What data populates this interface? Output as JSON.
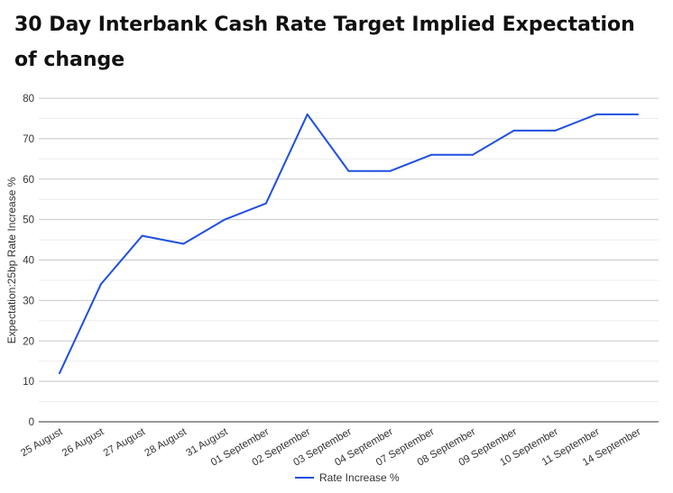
{
  "chart_data": {
    "type": "line",
    "title": "30 Day Interbank Cash Rate Target Implied Expectation of change",
    "xlabel": "",
    "ylabel": "Expectation:25bp Rate Increase %",
    "ylim": [
      0,
      80
    ],
    "yticks": [
      0,
      10,
      20,
      30,
      40,
      50,
      60,
      70,
      80
    ],
    "grid": true,
    "legend_position": "bottom",
    "categories": [
      "25 August",
      "26 August",
      "27 August",
      "28 August",
      "31 August",
      "01 September",
      "02 September",
      "03 September",
      "04 September",
      "07 September",
      "08 September",
      "09 September",
      "10 September",
      "11 September",
      "14 September"
    ],
    "series": [
      {
        "name": "Rate Increase %",
        "color": "#1f4fe0",
        "values": [
          12,
          34,
          46,
          44,
          50,
          54,
          76,
          62,
          62,
          66,
          66,
          72,
          72,
          76,
          76
        ]
      }
    ]
  }
}
